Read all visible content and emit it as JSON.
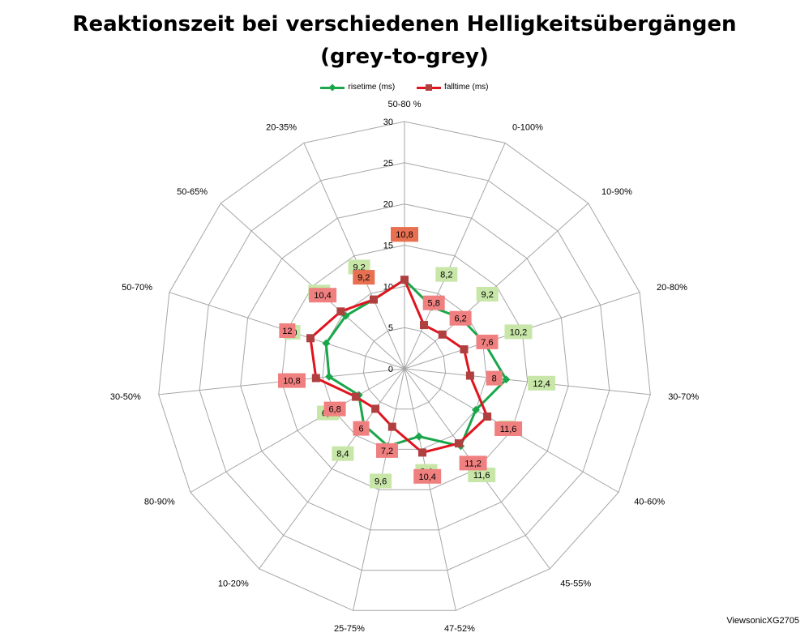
{
  "title_line1": "Reaktionszeit bei verschiedenen Helligkeitsübergängen",
  "title_line2": "(grey-to-grey)",
  "credit": "ViewsonicXG2705",
  "colors": {
    "rise": "#1aa64a",
    "fall": "#e0141e",
    "rise_label_bg": "#c7e6a8",
    "fall_label_bg": "#f08080",
    "highlight_label_bg": "#e87050",
    "grid": "#a6a6a6"
  },
  "chart_data": {
    "type": "radar",
    "title": "Reaktionszeit bei verschiedenen Helligkeitsübergängen (grey-to-grey)",
    "categories": [
      "50-80 %",
      "0-100%",
      "10-90%",
      "20-80%",
      "30-70%",
      "40-60%",
      "45-55%",
      "47-52%",
      "25-75%",
      "10-20%",
      "80-90%",
      "30-50%",
      "50-70%",
      "50-65%",
      "20-35%"
    ],
    "radial_ticks": [
      "0",
      "5",
      "10",
      "15",
      "20",
      "25",
      "30"
    ],
    "rmax": 30,
    "legend_position": "top",
    "series": [
      {
        "name": "risetime (ms)",
        "color": "#1aa64a",
        "marker": "diamond",
        "values": [
          10.8,
          8.2,
          9.2,
          10.2,
          12.4,
          10,
          11.6,
          8.4,
          9.6,
          8.4,
          6.4,
          9.2,
          10,
          9.6,
          9.2
        ],
        "labels": [
          "10,8",
          "8,2",
          "9,2",
          "10,2",
          "12,4",
          "10",
          "11,6",
          "8,4",
          "9,6",
          "8,4",
          "6,4",
          "9,2",
          "10",
          "9,6",
          "9,2"
        ]
      },
      {
        "name": "falltime (ms)",
        "color": "#e0141e",
        "marker": "square",
        "values": [
          10.8,
          5.8,
          6.2,
          7.6,
          8,
          11.6,
          11.2,
          10.4,
          7.2,
          6,
          6.8,
          10.8,
          12,
          10.4,
          9.2
        ],
        "labels": [
          "10,8",
          "5,8",
          "6,2",
          "7,6",
          "8",
          "11,6",
          "11,2",
          "10,4",
          "7,2",
          "6",
          "6,8",
          "10,8",
          "12",
          "10,4",
          "9,2"
        ]
      }
    ]
  }
}
